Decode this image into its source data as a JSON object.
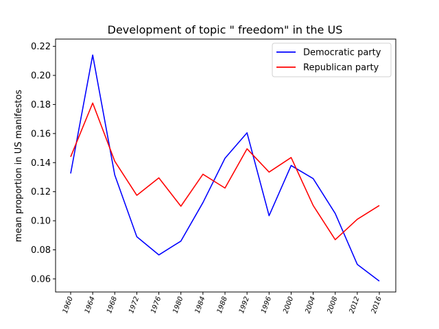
{
  "chart_data": {
    "type": "line",
    "title": "Development of topic \" freedom\" in the US",
    "xlabel": "",
    "ylabel": "mean proportion in US manifestos",
    "categories": [
      "1960",
      "1964",
      "1968",
      "1972",
      "1976",
      "1980",
      "1984",
      "1988",
      "1992",
      "1996",
      "2000",
      "2004",
      "2008",
      "2012",
      "2016"
    ],
    "yticks": [
      "0.06",
      "0.08",
      "0.10",
      "0.12",
      "0.14",
      "0.16",
      "0.18",
      "0.20",
      "0.22"
    ],
    "ylim": [
      0.051,
      0.225
    ],
    "grid": false,
    "legend_position": "top-right",
    "series": [
      {
        "name": "Democratic party",
        "color": "#0000ff",
        "values": [
          0.1325,
          0.214,
          0.1315,
          0.089,
          0.0765,
          0.086,
          0.1125,
          0.143,
          0.1605,
          0.1035,
          0.138,
          0.129,
          0.105,
          0.07,
          0.0585
        ]
      },
      {
        "name": "Republican party",
        "color": "#ff0000",
        "values": [
          0.144,
          0.181,
          0.141,
          0.1175,
          0.1295,
          0.11,
          0.132,
          0.1225,
          0.1495,
          0.1335,
          0.1435,
          0.1105,
          0.087,
          0.101,
          0.1105
        ]
      }
    ]
  }
}
